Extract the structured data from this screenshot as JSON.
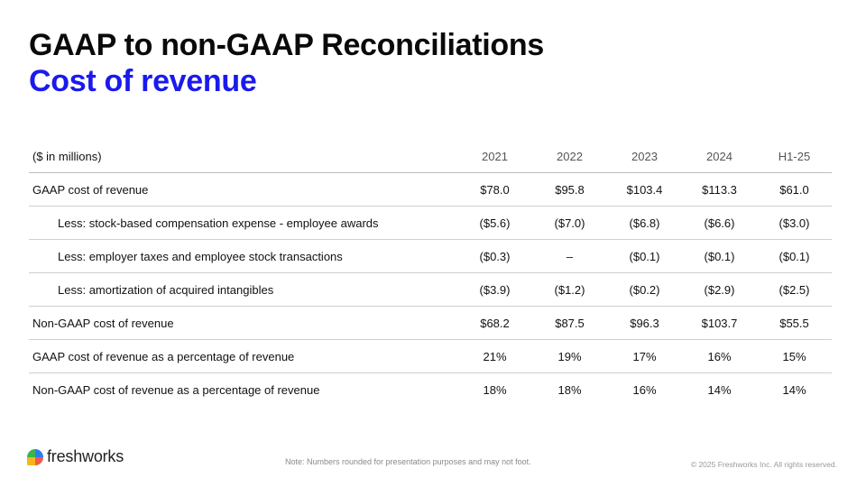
{
  "title": "GAAP to non-GAAP Reconciliations",
  "subtitle": "Cost of revenue",
  "table": {
    "unit_label": "($ in millions)",
    "columns": [
      "2021",
      "2022",
      "2023",
      "2024",
      "H1-25"
    ],
    "rows": [
      {
        "prefix": "",
        "label": "GAAP cost of revenue",
        "values": [
          "$78.0",
          "$95.8",
          "$103.4",
          "$113.3",
          "$61.0"
        ]
      },
      {
        "prefix": "Less: ",
        "label": "stock-based compensation expense - employee awards",
        "values": [
          "($5.6)",
          "($7.0)",
          "($6.8)",
          "($6.6)",
          "($3.0)"
        ]
      },
      {
        "prefix": "Less: ",
        "label": "employer taxes and employee stock transactions",
        "values": [
          "($0.3)",
          "–",
          "($0.1)",
          "($0.1)",
          "($0.1)"
        ]
      },
      {
        "prefix": "Less: ",
        "label": "amortization of acquired intangibles",
        "values": [
          "($3.9)",
          "($1.2)",
          "($0.2)",
          "($2.9)",
          "($2.5)"
        ]
      },
      {
        "prefix": "",
        "label": "Non-GAAP cost of revenue",
        "values": [
          "$68.2",
          "$87.5",
          "$96.3",
          "$103.7",
          "$55.5"
        ]
      },
      {
        "prefix": "",
        "label": "GAAP cost of revenue as a percentage of revenue",
        "values": [
          "21%",
          "19%",
          "17%",
          "16%",
          "15%"
        ]
      },
      {
        "prefix": "",
        "label": "Non-GAAP cost of revenue as a percentage of revenue",
        "values": [
          "18%",
          "18%",
          "16%",
          "14%",
          "14%"
        ]
      }
    ]
  },
  "footer": {
    "logo_text": "freshworks",
    "note": "Note: Numbers rounded for presentation purposes and may not foot.",
    "copyright": "© 2025 Freshworks Inc. All rights reserved."
  },
  "colors": {
    "subtitle": "#1a1aee",
    "title": "#0a0a0a"
  }
}
